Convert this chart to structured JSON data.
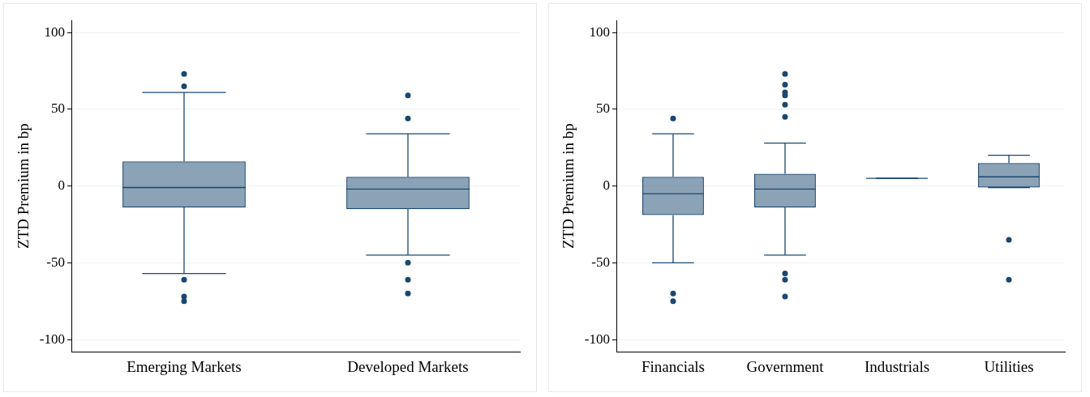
{
  "chart_data": [
    {
      "type": "box",
      "ylabel": "ZTD Premium in bp",
      "categories": [
        "Emerging Markets",
        "Developed Markets"
      ],
      "color": "#1a476f",
      "boxes": [
        {
          "low": -57,
          "q1": -14,
          "median": -1,
          "q3": 16,
          "high": 61,
          "outliers": [
            73,
            65,
            -61,
            -72,
            -75
          ]
        },
        {
          "low": -45,
          "q1": -15,
          "median": -2,
          "q3": 6,
          "high": 34,
          "outliers": [
            59,
            44,
            -50,
            -61,
            -70
          ]
        }
      ],
      "ylim": [
        -108,
        108
      ],
      "yticks": [
        -100,
        -50,
        0,
        50,
        100
      ],
      "grid": "y"
    },
    {
      "type": "box",
      "ylabel": "ZTD Premium in bp",
      "categories": [
        "Financials",
        "Government",
        "Industrials",
        "Utilities"
      ],
      "color": "#1a476f",
      "boxes": [
        {
          "low": -50,
          "q1": -19,
          "median": -5,
          "q3": 6,
          "high": 34,
          "outliers": [
            44,
            -70,
            -75
          ]
        },
        {
          "low": -45,
          "q1": -14,
          "median": -2,
          "q3": 8,
          "high": 28,
          "outliers": [
            73,
            66,
            61,
            59,
            53,
            45,
            -57,
            -61,
            -72
          ]
        },
        {
          "low": 5,
          "q1": 5,
          "median": 5,
          "q3": 5,
          "high": 5
        },
        {
          "low": -1,
          "q1": -1,
          "median": 6,
          "q3": 15,
          "high": 20,
          "outliers": [
            -35,
            -61
          ]
        }
      ],
      "ylim": [
        -108,
        108
      ],
      "yticks": [
        -100,
        -50,
        0,
        50,
        100
      ],
      "grid": "y"
    }
  ]
}
